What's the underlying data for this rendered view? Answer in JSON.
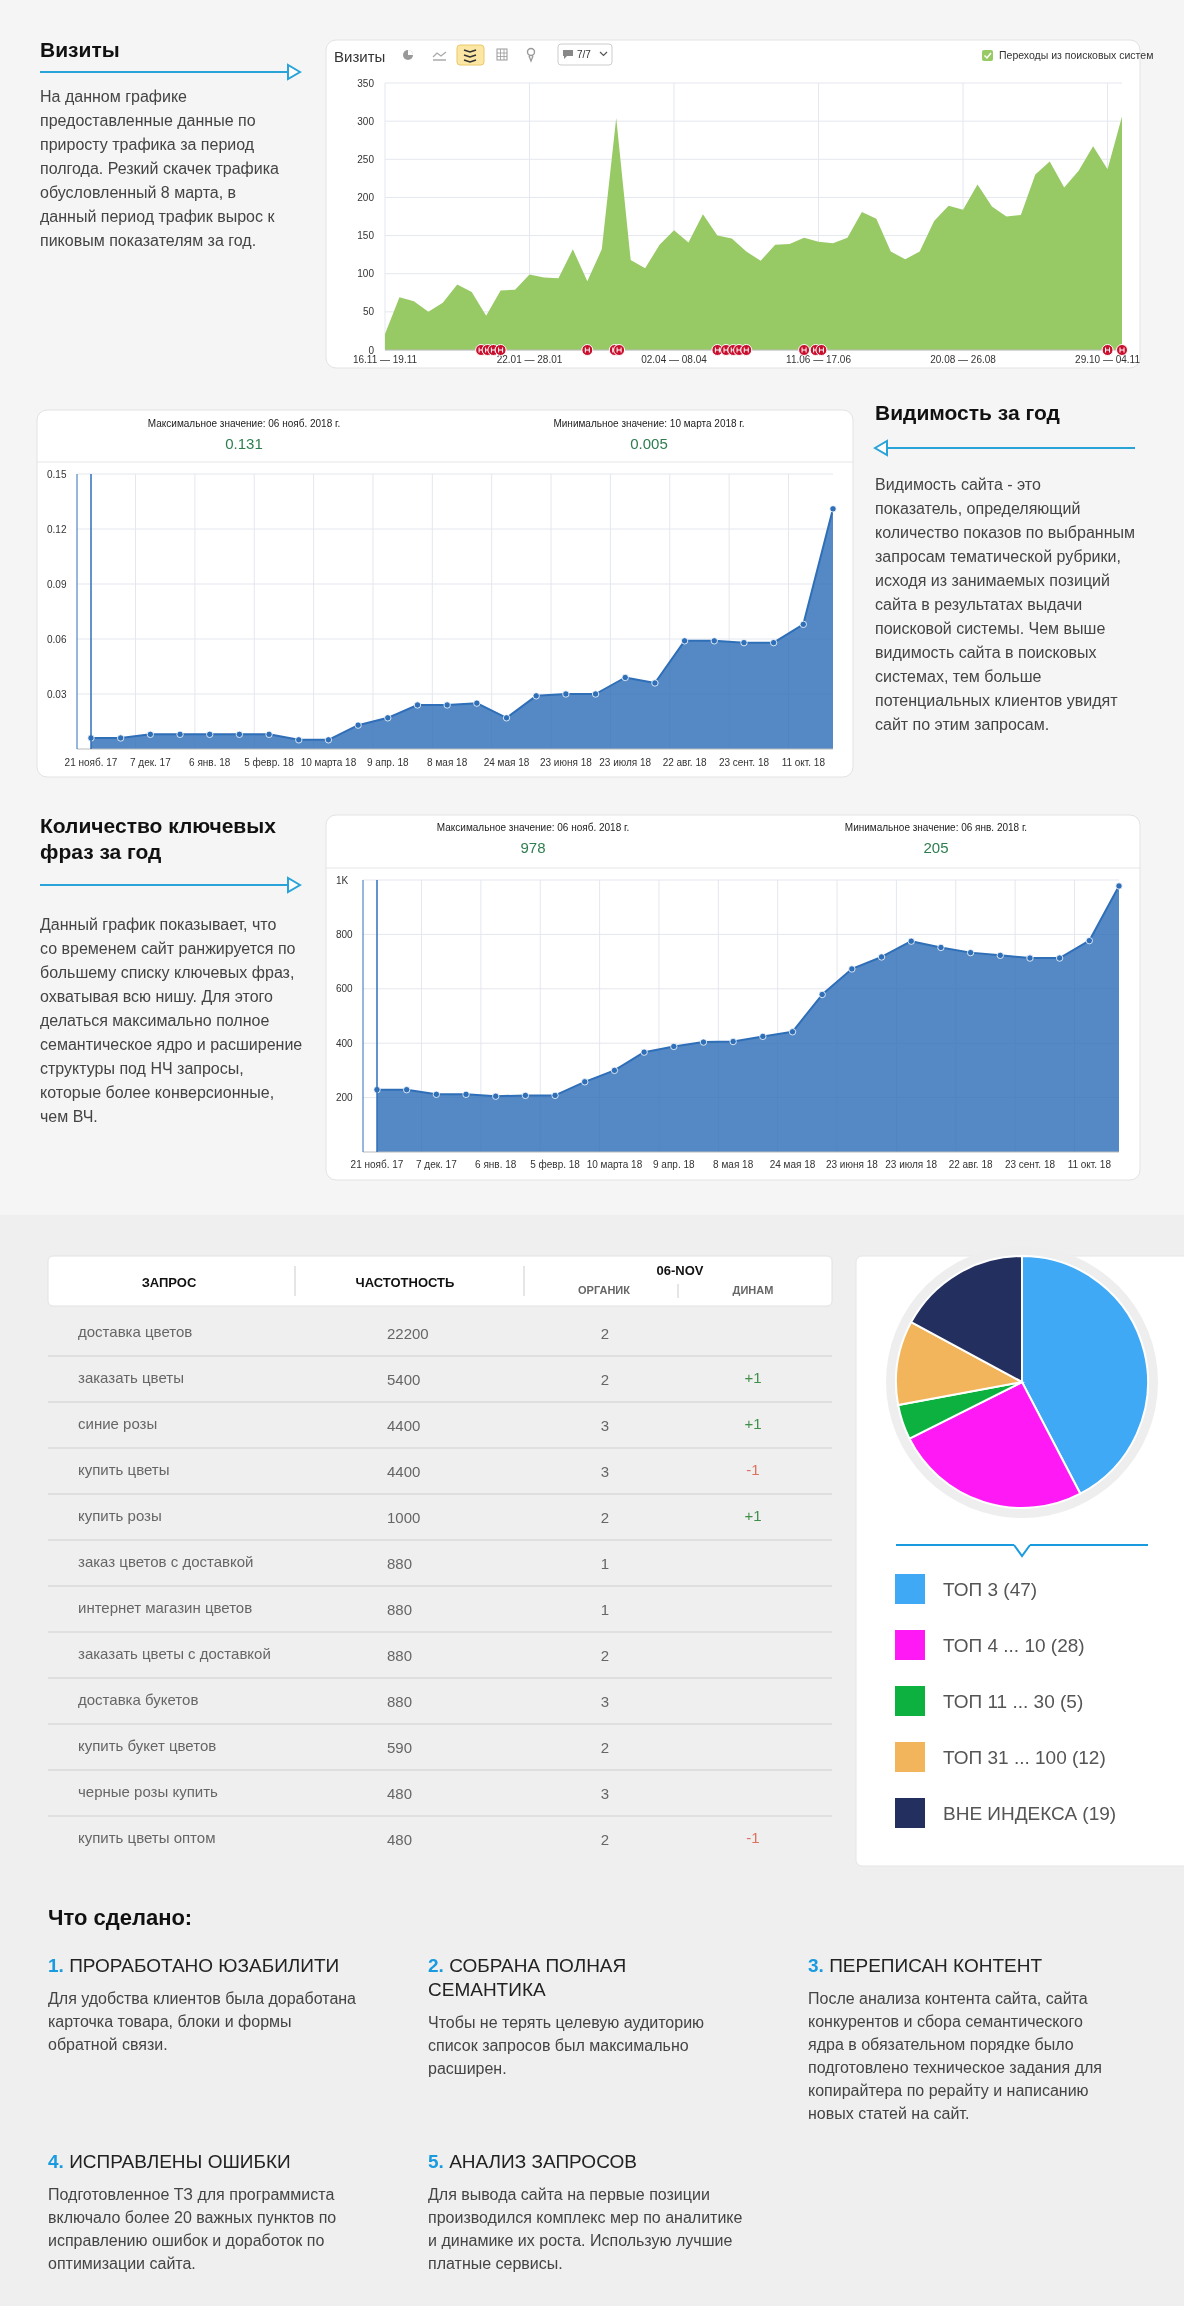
{
  "chart_data": [
    {
      "type": "other",
      "title": "Визиты",
      "annotations": [
        "На данном графике предоставленные данные по приросту трафика за период полгода. Резкий скачек трафика обусловленный  8 марта, в данный период трафик вырос к пиковым показателям за год."
      ]
    },
    {
      "type": "area",
      "title": "Визиты",
      "annotations": [
        "7/7"
      ],
      "categories": [
        "16.11 — 19.11",
        null,
        null,
        null,
        null,
        null,
        null,
        null,
        null,
        null,
        "22.01 — 28.01",
        null,
        null,
        null,
        null,
        null,
        null,
        null,
        null,
        null,
        "02.04 — 08.04",
        null,
        null,
        null,
        null,
        null,
        null,
        null,
        null,
        null,
        "11.06 — 17.06",
        null,
        null,
        null,
        null,
        null,
        null,
        null,
        null,
        null,
        "20.08 — 26.08",
        null,
        null,
        null,
        null,
        null,
        null,
        null,
        null,
        null,
        "29.10 — 04.11",
        null
      ],
      "series": [
        {
          "name": "Переходы из поисковых систем",
          "color": "#97c965",
          "values": [
            21,
            69,
            64,
            50,
            62,
            86,
            76,
            45,
            78,
            79,
            99,
            95,
            94,
            132,
            90,
            132,
            304,
            118,
            107,
            138,
            157,
            141,
            178,
            150,
            146,
            129,
            117,
            138,
            139,
            147,
            142,
            140,
            147,
            181,
            172,
            129,
            119,
            129,
            169,
            189,
            184,
            217,
            188,
            175,
            177,
            230,
            247,
            213,
            235,
            267,
            237,
            306
          ]
        }
      ],
      "ylim": [
        0,
        350
      ],
      "yticks": [
        0,
        50,
        100,
        150,
        200,
        250,
        300,
        350
      ],
      "grid": true,
      "legend": "top right"
    },
    {
      "type": "area",
      "annotations": [
        "Максимальное значение: 06 нояб. 2018 г.",
        "0.131",
        "Минимальное значение: 10 марта 2018 г.",
        "0.005"
      ],
      "categories": [
        "21 нояб. 17",
        null,
        "7 дек. 17",
        null,
        "6 янв. 18",
        null,
        "5 февр. 18",
        null,
        "10 марта 18",
        null,
        "9 апр. 18",
        null,
        "8 мая 18",
        null,
        "24 мая 18",
        null,
        "23 июня 18",
        null,
        "23 июля 18",
        null,
        "22 авг. 18",
        null,
        "23 сент. 18",
        null,
        "11 окт. 18",
        null
      ],
      "series": [
        {
          "color": "#2f6fb8",
          "values": [
            0.006,
            0.006,
            0.008,
            0.008,
            0.008,
            0.008,
            0.008,
            0.005,
            0.005,
            0.013,
            0.017,
            0.024,
            0.024,
            0.025,
            0.017,
            0.029,
            0.03,
            0.03,
            0.039,
            0.036,
            0.059,
            0.059,
            0.058,
            0.058,
            0.068,
            0.131
          ]
        }
      ],
      "ylim": [
        0,
        0.15
      ],
      "yticks": [
        0.03,
        0.06,
        0.09,
        0.12,
        0.15
      ],
      "grid": true,
      "marker": "circle",
      "ref_lines": [
        {
          "axis": "x",
          "value": "21 нояб. 17",
          "color": "#2f6fb8"
        }
      ]
    },
    {
      "type": "other",
      "title": "Видимость за год",
      "annotations": [
        "Видимость сайта - это показатель, определяющий количество показов по выбранным запросам тематической рубрики, исходя из занимаемых позиций сайта в результатах выдачи поисковой системы. Чем выше видимость сайта в поисковых системах, тем больше потенциальных клиентов увидят сайт по этим запросам."
      ]
    },
    {
      "type": "other",
      "title": "Количество ключевых фраз за год",
      "annotations": [
        "Данный график показывает, что со временем сайт ранжируется по большему списку ключевых фраз, охватывая всю нишу. Для этого  делаться максимально полное семантическое ядро и расширение структуры под НЧ запросы, которые более конверсионные, чем ВЧ."
      ]
    },
    {
      "type": "area",
      "annotations": [
        "Максимальное значение: 06 нояб. 2018 г.",
        "978",
        "Минимальное значение: 06 янв. 2018 г.",
        "205"
      ],
      "categories": [
        "21 нояб. 17",
        null,
        "7 дек. 17",
        null,
        "6 янв. 18",
        null,
        "5 февр. 18",
        null,
        "10 марта 18",
        null,
        "9 апр. 18",
        null,
        "8 мая 18",
        null,
        "24 мая 18",
        null,
        "23 июня 18",
        null,
        "23 июля 18",
        null,
        "22 авг. 18",
        null,
        "23 сент. 18",
        null,
        "11 окт. 18",
        null
      ],
      "series": [
        {
          "color": "#2f6fb8",
          "values": [
            229,
            229,
            212,
            212,
            205,
            208,
            208,
            258,
            300,
            367,
            388,
            404,
            406,
            425,
            442,
            579,
            673,
            717,
            775,
            752,
            733,
            723,
            713,
            713,
            777,
            978
          ]
        }
      ],
      "ylim": [
        0,
        1000
      ],
      "yticks": [
        200,
        400,
        600,
        800,
        {
          "value": 1000,
          "label": "1K"
        }
      ],
      "grid": true,
      "marker": "circle",
      "ref_lines": [
        {
          "axis": "x",
          "value": "21 нояб. 17",
          "color": "#2f6fb8"
        }
      ]
    },
    {
      "type": "other",
      "xlabel": "ЗАПРОС",
      "legend_title": "06-NOV",
      "data_labels": true,
      "categories": [
        "доставка цветов",
        "заказать цветы",
        "синие розы",
        "купить цветы",
        "купить розы",
        "заказ цветов с доставкой",
        "интернет магазин цветов",
        "заказать цветы с доставкой",
        "доставка букетов",
        "купить букет цветов",
        "черные розы купить",
        "купить цветы оптом"
      ],
      "series": [
        {
          "name": "ЧАСТОТНОСТЬ",
          "values": [
            22200,
            5400,
            4400,
            4400,
            1000,
            880,
            880,
            880,
            880,
            590,
            480,
            480
          ]
        },
        {
          "name": "ОРГАНИК",
          "values": [
            2,
            2,
            3,
            3,
            2,
            1,
            1,
            2,
            3,
            2,
            3,
            2
          ]
        },
        {
          "name": "ДИНАМ",
          "values": [
            null,
            1,
            1,
            -1,
            1,
            null,
            null,
            null,
            null,
            null,
            null,
            -1
          ],
          "value_labels": [
            null,
            "+1",
            "+1",
            "-1",
            "+1",
            null,
            null,
            null,
            null,
            null,
            null,
            "-1"
          ]
        }
      ]
    },
    {
      "type": "pie",
      "categories": [
        "ТОП 3 (47)",
        "ТОП 4 ... 10 (28)",
        "ТОП 11 ... 30 (5)",
        "ТОП 31 ... 100 (12)",
        "ВНЕ ИНДЕКСА (19)"
      ],
      "values": [
        47,
        28,
        5,
        12,
        19
      ],
      "colors": [
        "#3fa9f5",
        "#ff19f5",
        "#0db140",
        "#f2b55b",
        "#23305f"
      ],
      "legend": "bottom"
    },
    {
      "type": "other",
      "title": "Что сделано:",
      "annotations": [
        "1. ПРОРАБОТАНО ЮЗАБИЛИТИ",
        "Для удобства клиентов была доработана карточка товара, блоки и формы обратной связи.",
        "2. СОБРАНА ПОЛНАЯ СЕМАНТИКА",
        "Чтобы не терять целевую аудиторию список запросов был максимально расширен.",
        "3. ПЕРЕПИСАН КОНТЕНТ",
        "После анализа контента сайта, сайта конкурентов и сбора семантического ядра в обязательном порядке было подготовлено техническое задания для копирайтера по рерайту и написанию новых статей на сайт.",
        "4. ИСПРАВЛЕНЫ ОШИБКИ",
        "Подготовленное ТЗ для программиста включало более 20 важных пунктов по исправлению ошибок и доработок по оптимизации сайта.",
        "5. АНАЛИЗ ЗАПРОСОВ",
        "Для вывода сайта на первые позиции производился комплекс мер по аналитике и динамике их роста. Использую лучшие платные сервисы."
      ]
    }
  ]
}
